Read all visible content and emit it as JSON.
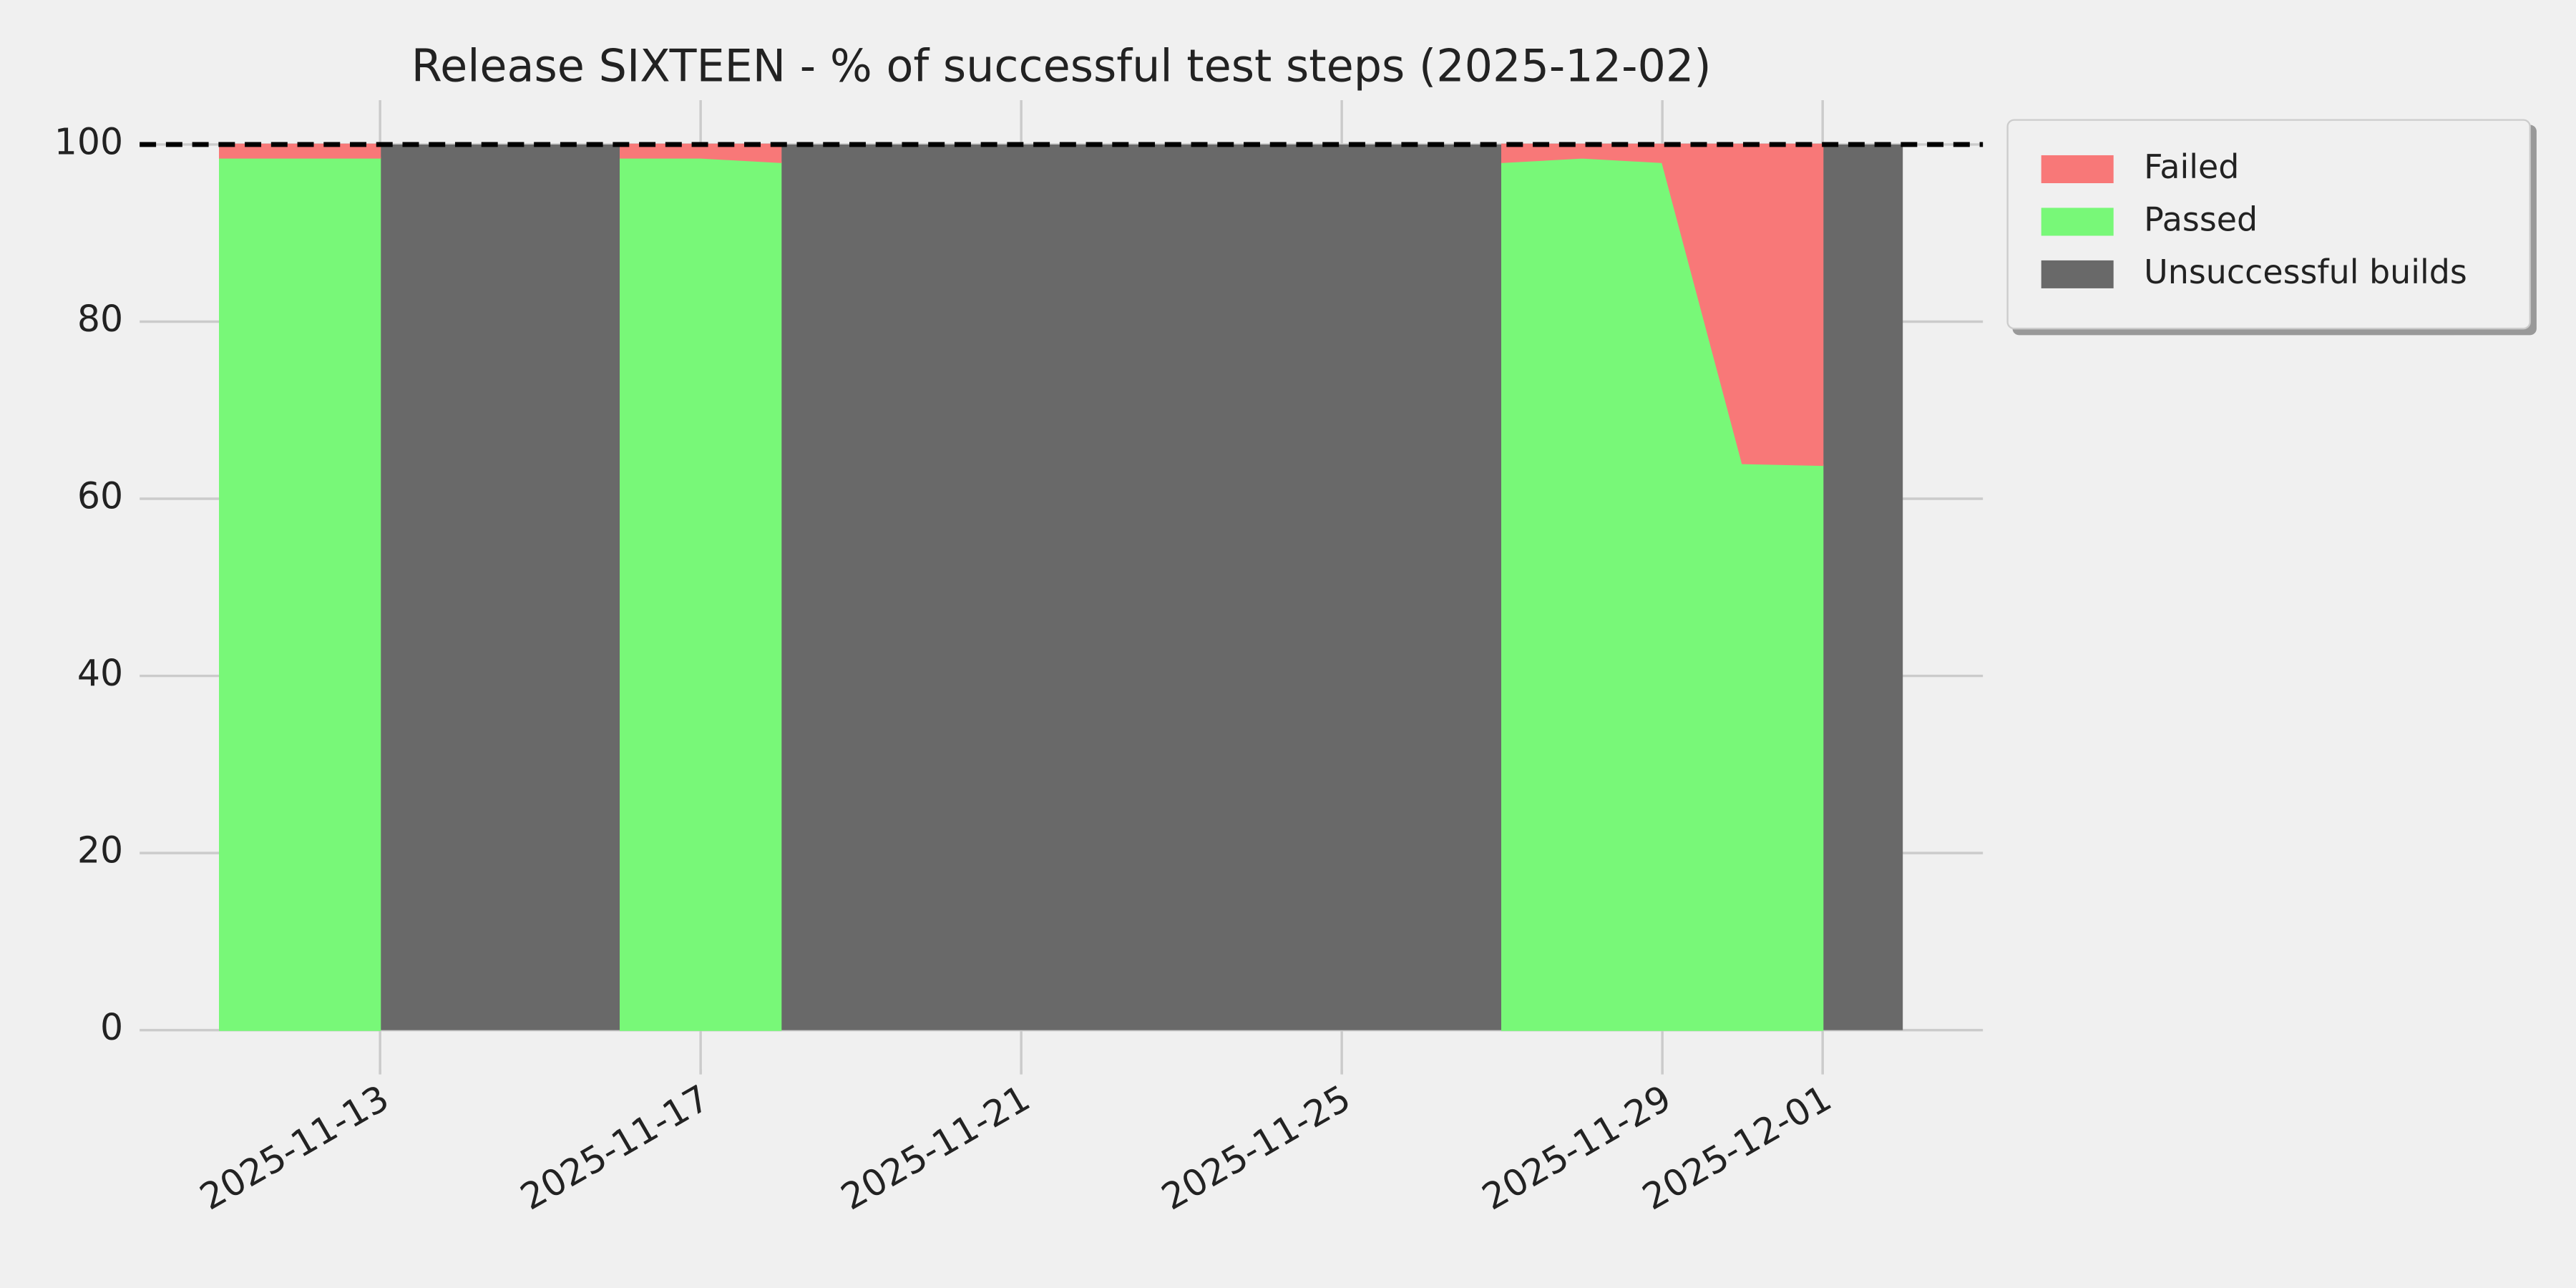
{
  "chart_data": {
    "type": "area",
    "title": "Release SIXTEEN - % of successful test steps (2025-12-02)",
    "x": [
      "2025-11-11",
      "2025-11-12",
      "2025-11-13",
      "2025-11-14",
      "2025-11-15",
      "2025-11-16",
      "2025-11-17",
      "2025-11-18",
      "2025-11-19",
      "2025-11-20",
      "2025-11-21",
      "2025-11-22",
      "2025-11-23",
      "2025-11-24",
      "2025-11-25",
      "2025-11-26",
      "2025-11-27",
      "2025-11-28",
      "2025-11-29",
      "2025-11-30",
      "2025-12-01"
    ],
    "series": [
      {
        "name": "Failed",
        "color": "#f87878",
        "values": [
          1.5,
          1.5,
          1.5,
          null,
          null,
          1.5,
          1.5,
          2,
          null,
          null,
          null,
          null,
          null,
          null,
          null,
          null,
          2,
          1.5,
          2,
          36,
          36.2
        ]
      },
      {
        "name": "Passed",
        "color": "#78f878",
        "values": [
          98.5,
          98.5,
          98.5,
          null,
          null,
          98.5,
          98.5,
          98,
          null,
          null,
          null,
          null,
          null,
          null,
          null,
          null,
          98,
          98.5,
          98,
          64,
          63.8
        ]
      },
      {
        "name": "Unsuccessful builds",
        "color": "#696969",
        "spans": [
          {
            "start": "2025-11-13",
            "end": "2025-11-16",
            "value": 100
          },
          {
            "start": "2025-11-18",
            "end": "2025-11-27",
            "value": 100
          },
          {
            "start": "2025-12-01",
            "end": "2025-12-02",
            "value": 100
          }
        ]
      }
    ],
    "stack_order": [
      "Passed",
      "Failed"
    ],
    "reference_line": 100,
    "xlim": [
      "2025-11-10",
      "2025-12-03"
    ],
    "xticks": [
      "2025-11-13",
      "2025-11-17",
      "2025-11-21",
      "2025-11-25",
      "2025-11-29",
      "2025-12-01"
    ],
    "ylim": [
      -5,
      105
    ],
    "yticks": [
      0,
      20,
      40,
      60,
      80,
      100
    ],
    "grid": true,
    "legend": "outside-upper-right"
  }
}
